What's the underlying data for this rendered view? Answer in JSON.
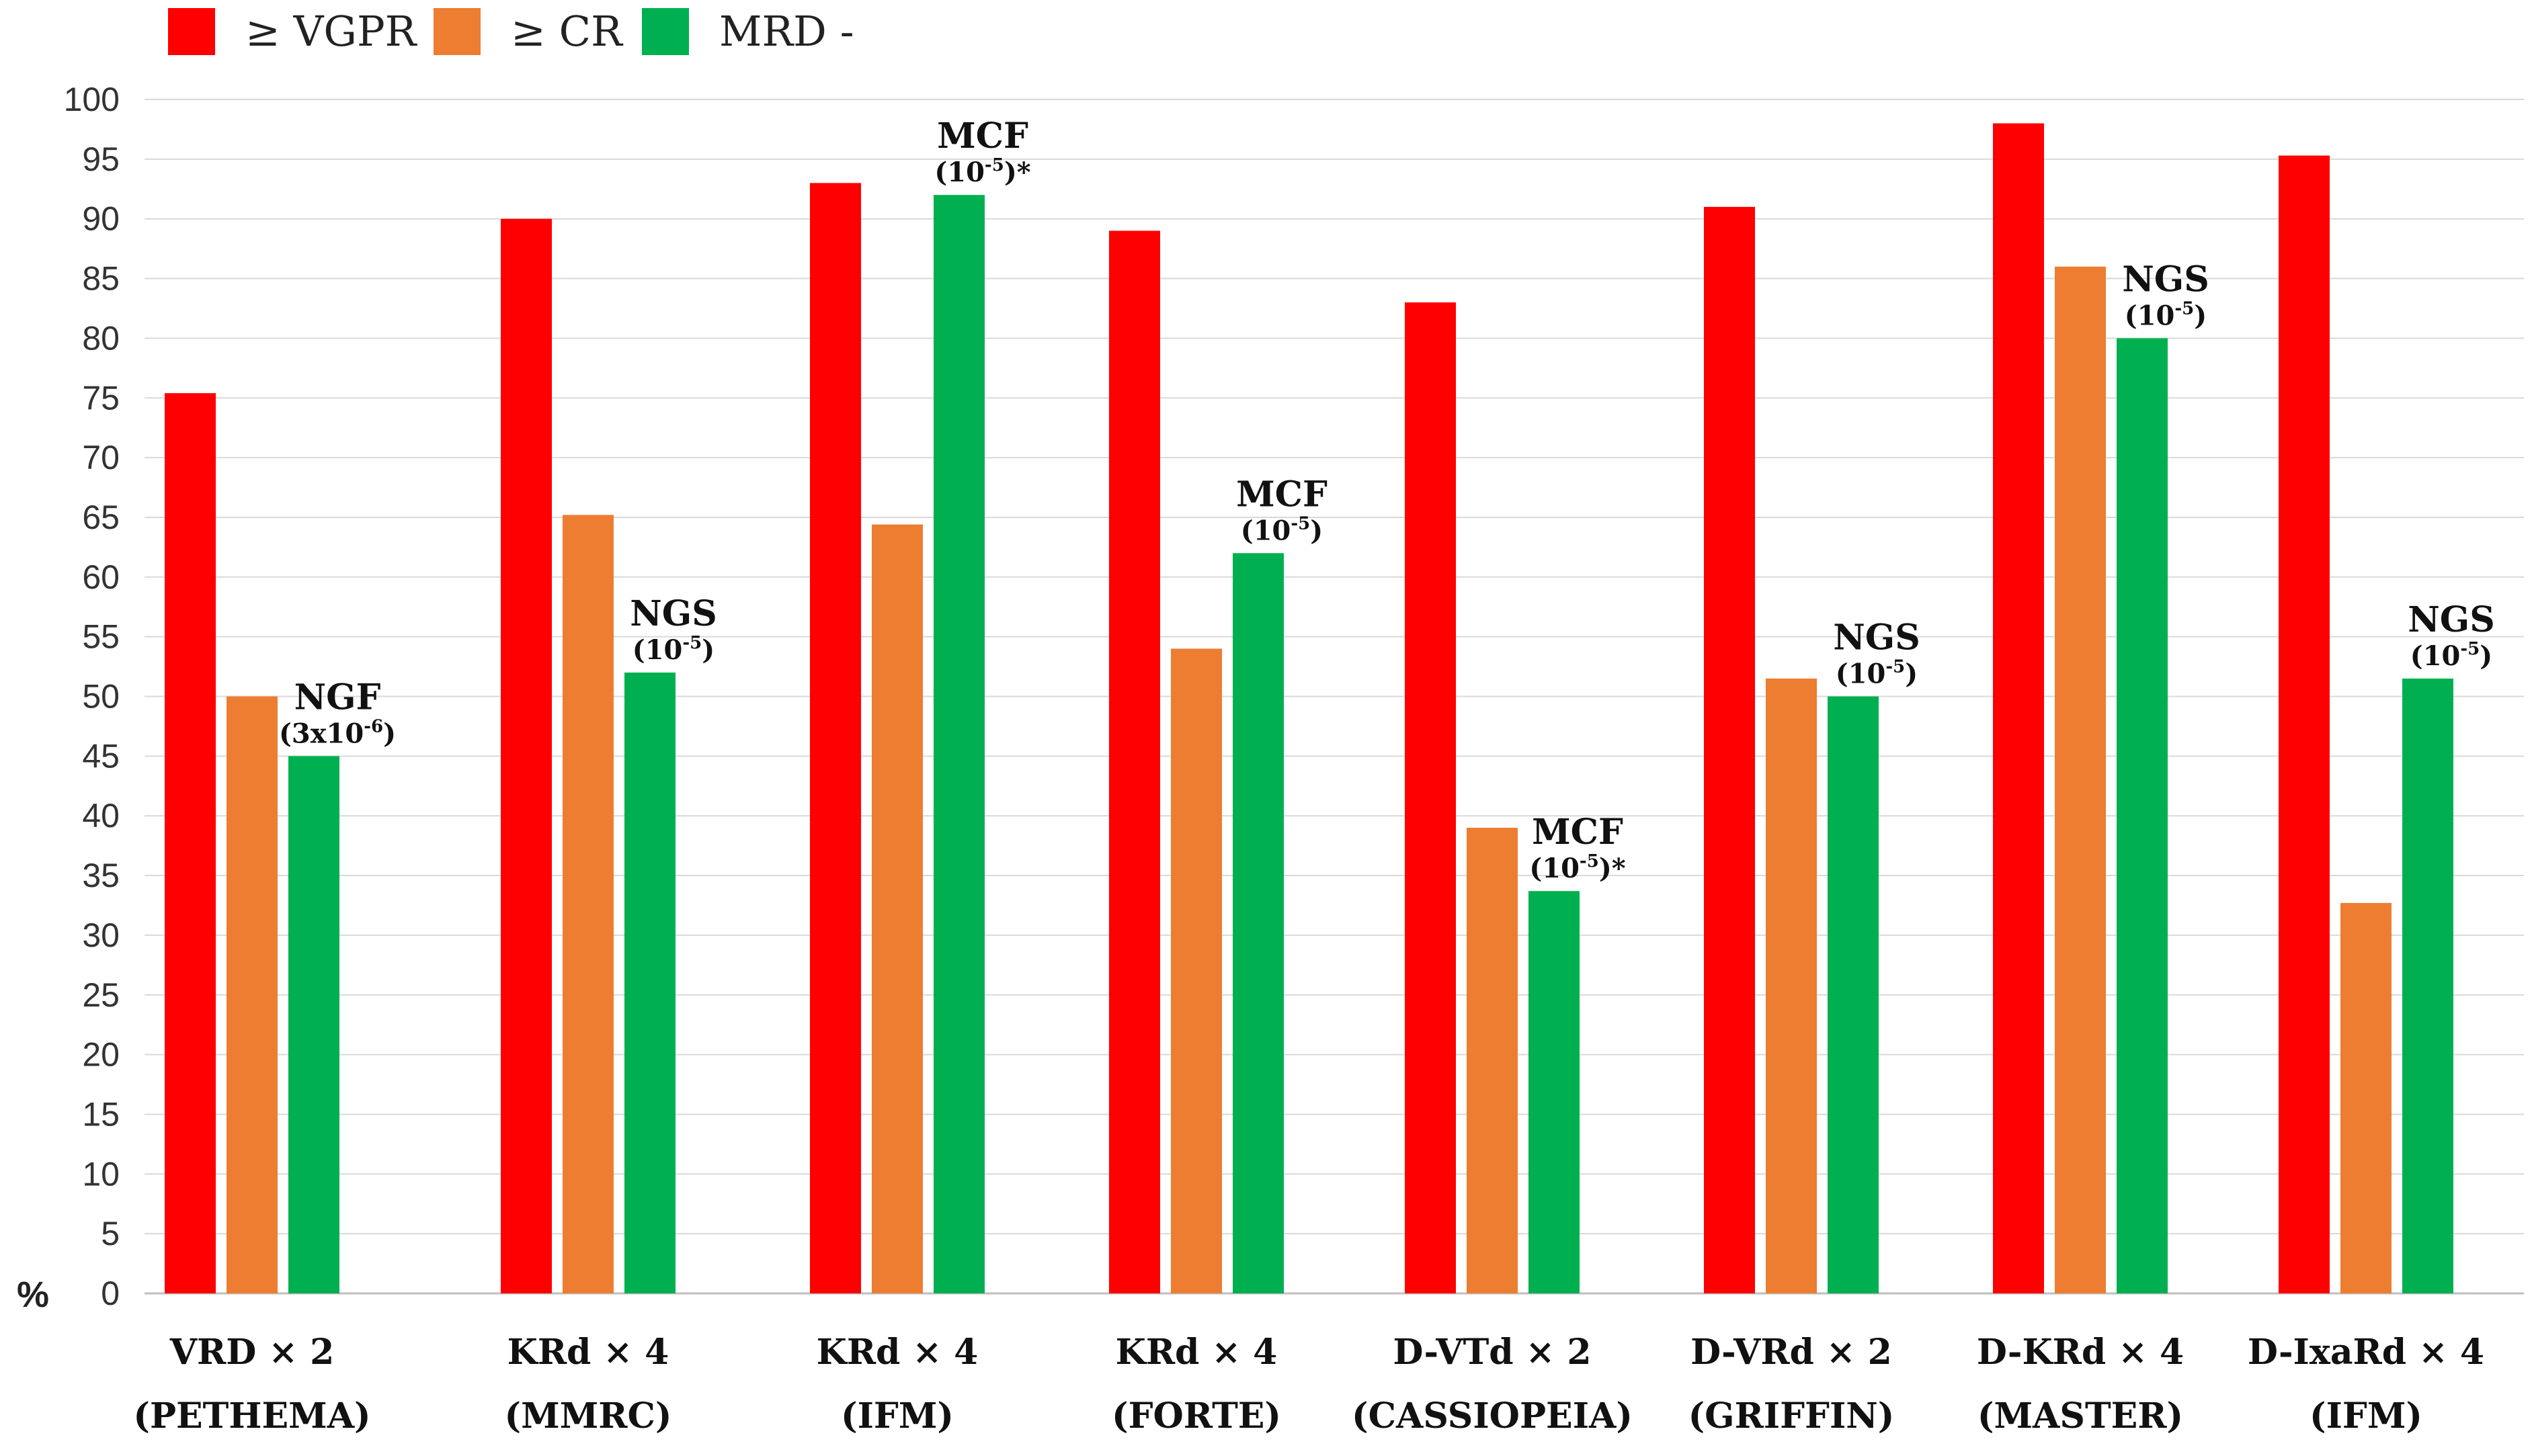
{
  "chart_data": {
    "type": "bar",
    "title": "",
    "xlabel": "",
    "ylabel": "%",
    "ylim": [
      0,
      100
    ],
    "ytick_step": 5,
    "grid": true,
    "legend_position": "top-left",
    "categories": [
      {
        "line1": "VRD × 2",
        "line2": "(PETHEMA)"
      },
      {
        "line1": "KRd × 4",
        "line2": "(MMRC)"
      },
      {
        "line1": "KRd × 4",
        "line2": "(IFM)"
      },
      {
        "line1": "KRd × 4",
        "line2": "(FORTE)"
      },
      {
        "line1": "D-VTd × 2",
        "line2": "(CASSIOPEIA)"
      },
      {
        "line1": "D-VRd × 2",
        "line2": "(GRIFFIN)"
      },
      {
        "line1": "D-KRd × 4",
        "line2": "(MASTER)"
      },
      {
        "line1": "D-IxaRd × 4",
        "line2": "(IFM)"
      }
    ],
    "series": [
      {
        "name": "≥ VGPR",
        "color": "#ff0000",
        "values": [
          75.4,
          90,
          93,
          89,
          83,
          91,
          98,
          95.3
        ]
      },
      {
        "name": "≥ CR",
        "color": "#ed7d31",
        "values": [
          50,
          65.2,
          64.4,
          54,
          39,
          51.5,
          86,
          32.7
        ]
      },
      {
        "name": "MRD -",
        "color": "#00b050",
        "values": [
          45,
          52,
          92,
          62,
          33.7,
          50,
          80,
          51.5
        ]
      }
    ],
    "annotations": [
      {
        "category": 0,
        "method": "NGF",
        "sens_base": "(3x10",
        "sens_exp": "-6",
        "sens_tail": ")"
      },
      {
        "category": 1,
        "method": "NGS",
        "sens_base": "(10",
        "sens_exp": "-5",
        "sens_tail": ")"
      },
      {
        "category": 2,
        "method": "MCF",
        "sens_base": "(10",
        "sens_exp": "-5",
        "sens_tail": ")*"
      },
      {
        "category": 3,
        "method": "MCF",
        "sens_base": "(10",
        "sens_exp": "-5",
        "sens_tail": ")"
      },
      {
        "category": 4,
        "method": "MCF",
        "sens_base": "(10",
        "sens_exp": "-5",
        "sens_tail": ")*"
      },
      {
        "category": 5,
        "method": "NGS",
        "sens_base": "(10",
        "sens_exp": "-5",
        "sens_tail": ")"
      },
      {
        "category": 6,
        "method": "NGS",
        "sens_base": "(10",
        "sens_exp": "-5",
        "sens_tail": ")"
      },
      {
        "category": 7,
        "method": "NGS",
        "sens_base": "(10",
        "sens_exp": "-5",
        "sens_tail": ")"
      }
    ]
  }
}
